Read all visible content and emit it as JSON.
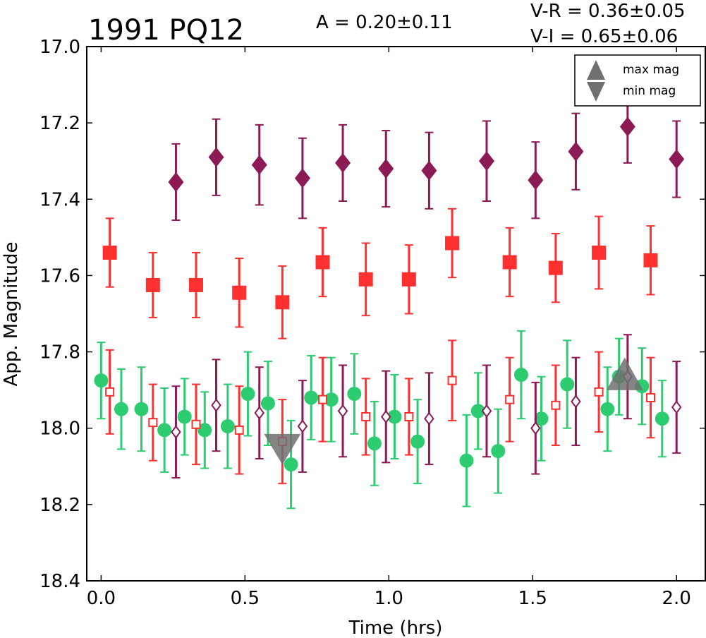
{
  "chart_data": {
    "type": "scatter",
    "title": "1991 PQ12",
    "annotations": {
      "amplitude": "A  = 0.20±0.11",
      "v_minus_r": "V-R = 0.36±0.05",
      "v_minus_i": "V-I  = 0.65±0.06"
    },
    "xlabel": "Time (hrs)",
    "ylabel": "App. Magnitude",
    "xlim": [
      -0.05,
      2.1
    ],
    "ylim": [
      18.4,
      17.0
    ],
    "y_inverted": true,
    "x_ticks": [
      "0.0",
      "0.5",
      "1.0",
      "1.5",
      "2.0"
    ],
    "y_ticks": [
      "17.0",
      "17.2",
      "17.4",
      "17.6",
      "17.8",
      "18.0",
      "18.2",
      "18.4"
    ],
    "grid": false,
    "legend_position": "top-right",
    "legend": [
      {
        "label": "max mag",
        "marker": "triangle-up",
        "color": "#707070"
      },
      {
        "label": "min mag",
        "marker": "triangle-down",
        "color": "#707070"
      }
    ],
    "series": [
      {
        "marker": "filled-diamond",
        "color": "#8b1a55",
        "points": [
          {
            "x": 0.26,
            "y": 17.355,
            "err": 0.1
          },
          {
            "x": 0.4,
            "y": 17.29,
            "err": 0.1
          },
          {
            "x": 0.55,
            "y": 17.31,
            "err": 0.105
          },
          {
            "x": 0.7,
            "y": 17.345,
            "err": 0.105
          },
          {
            "x": 0.84,
            "y": 17.305,
            "err": 0.1
          },
          {
            "x": 0.99,
            "y": 17.32,
            "err": 0.1
          },
          {
            "x": 1.14,
            "y": 17.325,
            "err": 0.1
          },
          {
            "x": 1.34,
            "y": 17.3,
            "err": 0.105
          },
          {
            "x": 1.51,
            "y": 17.35,
            "err": 0.1
          },
          {
            "x": 1.65,
            "y": 17.275,
            "err": 0.1
          },
          {
            "x": 1.83,
            "y": 17.21,
            "err": 0.095
          },
          {
            "x": 2.0,
            "y": 17.295,
            "err": 0.1
          }
        ]
      },
      {
        "marker": "filled-square",
        "color": "#ff3030",
        "points": [
          {
            "x": 0.03,
            "y": 17.54,
            "err": 0.09
          },
          {
            "x": 0.18,
            "y": 17.625,
            "err": 0.085
          },
          {
            "x": 0.33,
            "y": 17.625,
            "err": 0.085
          },
          {
            "x": 0.48,
            "y": 17.645,
            "err": 0.09
          },
          {
            "x": 0.63,
            "y": 17.67,
            "err": 0.095
          },
          {
            "x": 0.77,
            "y": 17.565,
            "err": 0.09
          },
          {
            "x": 0.92,
            "y": 17.61,
            "err": 0.095
          },
          {
            "x": 1.07,
            "y": 17.61,
            "err": 0.09
          },
          {
            "x": 1.22,
            "y": 17.515,
            "err": 0.09
          },
          {
            "x": 1.42,
            "y": 17.565,
            "err": 0.09
          },
          {
            "x": 1.58,
            "y": 17.58,
            "err": 0.09
          },
          {
            "x": 1.73,
            "y": 17.54,
            "err": 0.095
          },
          {
            "x": 1.91,
            "y": 17.56,
            "err": 0.09
          }
        ]
      },
      {
        "marker": "filled-circle",
        "color": "#2ecc71",
        "points": [
          {
            "x": 0.0,
            "y": 17.875,
            "err": 0.1
          },
          {
            "x": 0.07,
            "y": 17.95,
            "err": 0.105
          },
          {
            "x": 0.14,
            "y": 17.95,
            "err": 0.11
          },
          {
            "x": 0.22,
            "y": 18.005,
            "err": 0.11
          },
          {
            "x": 0.29,
            "y": 17.97,
            "err": 0.1
          },
          {
            "x": 0.36,
            "y": 18.005,
            "err": 0.1
          },
          {
            "x": 0.44,
            "y": 17.995,
            "err": 0.11
          },
          {
            "x": 0.51,
            "y": 17.91,
            "err": 0.11
          },
          {
            "x": 0.58,
            "y": 17.935,
            "err": 0.11
          },
          {
            "x": 0.66,
            "y": 18.095,
            "err": 0.115
          },
          {
            "x": 0.73,
            "y": 17.92,
            "err": 0.11
          },
          {
            "x": 0.8,
            "y": 17.925,
            "err": 0.11
          },
          {
            "x": 0.88,
            "y": 17.91,
            "err": 0.105
          },
          {
            "x": 0.95,
            "y": 18.04,
            "err": 0.11
          },
          {
            "x": 1.02,
            "y": 17.97,
            "err": 0.11
          },
          {
            "x": 1.1,
            "y": 18.035,
            "err": 0.11
          },
          {
            "x": 1.27,
            "y": 18.085,
            "err": 0.12
          },
          {
            "x": 1.31,
            "y": 17.955,
            "err": 0.1
          },
          {
            "x": 1.38,
            "y": 18.06,
            "err": 0.11
          },
          {
            "x": 1.46,
            "y": 17.86,
            "err": 0.115
          },
          {
            "x": 1.53,
            "y": 17.975,
            "err": 0.11
          },
          {
            "x": 1.62,
            "y": 17.885,
            "err": 0.115
          },
          {
            "x": 1.76,
            "y": 17.95,
            "err": 0.11
          },
          {
            "x": 1.8,
            "y": 17.865,
            "err": 0.1
          },
          {
            "x": 1.88,
            "y": 17.89,
            "err": 0.1
          },
          {
            "x": 1.95,
            "y": 17.975,
            "err": 0.1
          }
        ]
      },
      {
        "marker": "open-square",
        "color": "#ff3030",
        "points": [
          {
            "x": 0.03,
            "y": 17.905,
            "err": 0.11
          },
          {
            "x": 0.18,
            "y": 17.985,
            "err": 0.1
          },
          {
            "x": 0.33,
            "y": 17.99,
            "err": 0.105
          },
          {
            "x": 0.48,
            "y": 18.005,
            "err": 0.115
          },
          {
            "x": 0.63,
            "y": 18.035,
            "err": 0.11
          },
          {
            "x": 0.77,
            "y": 17.925,
            "err": 0.11
          },
          {
            "x": 0.92,
            "y": 17.97,
            "err": 0.1
          },
          {
            "x": 1.07,
            "y": 17.97,
            "err": 0.1
          },
          {
            "x": 1.22,
            "y": 17.875,
            "err": 0.105
          },
          {
            "x": 1.42,
            "y": 17.925,
            "err": 0.11
          },
          {
            "x": 1.58,
            "y": 17.94,
            "err": 0.105
          },
          {
            "x": 1.73,
            "y": 17.905,
            "err": 0.105
          },
          {
            "x": 1.91,
            "y": 17.92,
            "err": 0.105
          }
        ]
      },
      {
        "marker": "open-diamond",
        "color": "#8b1a55",
        "points": [
          {
            "x": 0.26,
            "y": 18.01,
            "err": 0.12
          },
          {
            "x": 0.4,
            "y": 17.94,
            "err": 0.12
          },
          {
            "x": 0.55,
            "y": 17.96,
            "err": 0.12
          },
          {
            "x": 0.7,
            "y": 17.995,
            "err": 0.12
          },
          {
            "x": 0.84,
            "y": 17.955,
            "err": 0.12
          },
          {
            "x": 0.99,
            "y": 17.97,
            "err": 0.12
          },
          {
            "x": 1.14,
            "y": 17.975,
            "err": 0.12
          },
          {
            "x": 1.34,
            "y": 17.955,
            "err": 0.12
          },
          {
            "x": 1.51,
            "y": 18.0,
            "err": 0.12
          },
          {
            "x": 1.65,
            "y": 17.93,
            "err": 0.115
          },
          {
            "x": 1.83,
            "y": 17.865,
            "err": 0.11
          },
          {
            "x": 2.0,
            "y": 17.945,
            "err": 0.12
          }
        ]
      }
    ],
    "extrema_markers": [
      {
        "type": "max",
        "marker": "triangle-up",
        "color": "#707070",
        "x": 1.82,
        "y": 17.87
      },
      {
        "type": "min",
        "marker": "triangle-down",
        "color": "#707070",
        "x": 0.63,
        "y": 18.04
      }
    ]
  }
}
